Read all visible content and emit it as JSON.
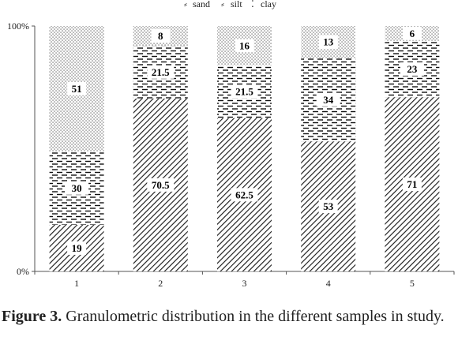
{
  "chart_data": {
    "type": "bar",
    "stacked": "percent",
    "categories": [
      "1",
      "2",
      "3",
      "4",
      "5"
    ],
    "series": [
      {
        "name": "sand",
        "values": [
          19,
          70.5,
          62.5,
          53,
          71
        ],
        "labels": [
          "19",
          "70.5",
          "62.5",
          "53",
          "71"
        ],
        "pattern": "diagonal-hatch"
      },
      {
        "name": "silt",
        "values": [
          30,
          21.5,
          21.5,
          34,
          23
        ],
        "labels": [
          "30",
          "21.5",
          "21.5",
          "34",
          "23"
        ],
        "pattern": "dashes"
      },
      {
        "name": "clay",
        "values": [
          51,
          8,
          16,
          13,
          6
        ],
        "labels": [
          "51",
          "8",
          "16",
          "13",
          "6"
        ],
        "pattern": "dots"
      }
    ],
    "yticks": [
      "0%",
      "100%"
    ],
    "ylim": [
      0,
      100
    ],
    "legend": {
      "position": "top",
      "symbols": [
        "⸗",
        "⸗",
        "⁚"
      ]
    },
    "grid": false
  },
  "caption": {
    "label": "Figure 3.",
    "text": " Granulometric distribution in the different samples in study."
  }
}
